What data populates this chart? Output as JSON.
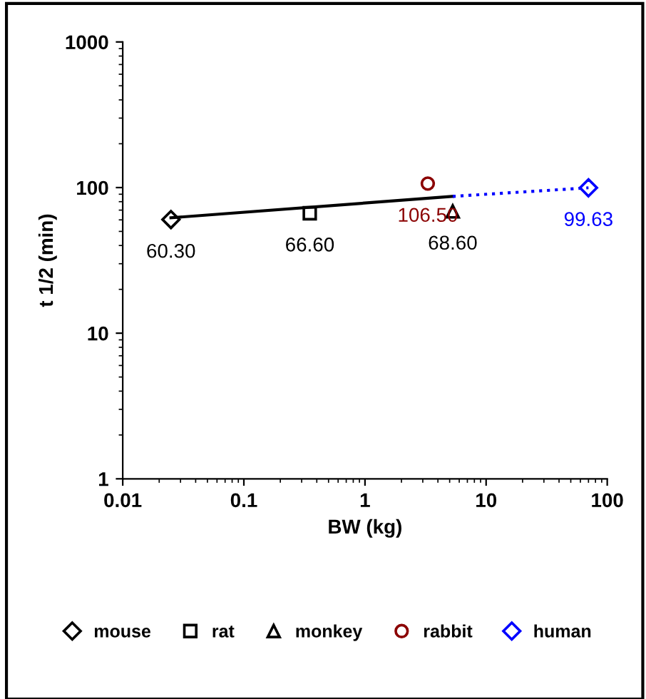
{
  "chart_data": {
    "type": "scatter",
    "xlabel": "BW (kg)",
    "ylabel": "t 1/2 (min)",
    "log": "xy",
    "xlim": [
      0.01,
      100
    ],
    "xticks": [
      0.01,
      0.1,
      1,
      10,
      100
    ],
    "ylim": [
      1,
      1000
    ],
    "yticks": [
      1,
      10,
      100,
      1000
    ],
    "grid": false,
    "legend": "bottom",
    "series": [
      {
        "name": "mouse",
        "color": "#000000",
        "marker": "diamond",
        "x": [
          0.025
        ],
        "values": [
          60.3
        ],
        "value_labels": [
          "60.30"
        ]
      },
      {
        "name": "rat",
        "color": "#000000",
        "marker": "square",
        "x": [
          0.35
        ],
        "values": [
          66.6
        ],
        "value_labels": [
          "66.60"
        ]
      },
      {
        "name": "monkey",
        "color": "#000000",
        "marker": "triangle",
        "x": [
          5.3
        ],
        "values": [
          68.6
        ],
        "value_labels": [
          "68.60"
        ]
      },
      {
        "name": "rabbit",
        "color": "#8b0000",
        "marker": "circle",
        "x": [
          3.3
        ],
        "values": [
          106.5
        ],
        "value_labels": [
          "106.50"
        ]
      },
      {
        "name": "human",
        "color": "#0000ff",
        "marker": "diamond",
        "x": [
          70
        ],
        "values": [
          99.63
        ],
        "value_labels": [
          "99.63"
        ]
      },
      {
        "type": "line",
        "color": "#000000",
        "line_style": "solid",
        "marker": "none",
        "x": [
          0.025,
          5.3
        ],
        "values": [
          62,
          87
        ]
      },
      {
        "type": "line",
        "color": "#0000ff",
        "line_style": "dotted",
        "marker": "none",
        "x": [
          5.3,
          70
        ],
        "values": [
          87,
          99.63
        ]
      }
    ]
  }
}
